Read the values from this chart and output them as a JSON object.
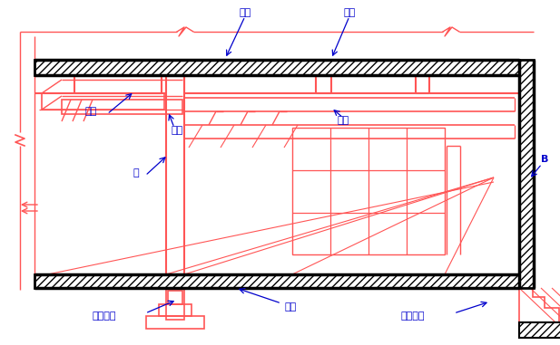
{
  "bg_color": "#ffffff",
  "rc": "#ff5555",
  "bk": "#000000",
  "bl": "#0000cc",
  "figsize": [
    6.17,
    3.81
  ],
  "dpi": 100,
  "labels": {
    "zhujia_top": "主梁",
    "loban": "楼板",
    "cijia_left": "次梁",
    "zhujia_left": "主梁",
    "zhu": "柱",
    "cijia_right": "次梁",
    "dumian": "地面",
    "dulijichou": "独立基础",
    "tiaoxingjichou": "条形基础",
    "B": "B"
  }
}
